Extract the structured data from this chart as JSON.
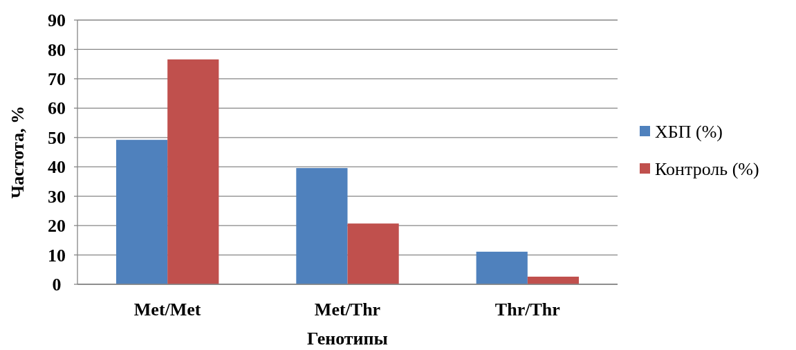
{
  "chart_data": {
    "type": "bar",
    "xlabel": "Генотипы",
    "ylabel": "Частота, %",
    "categories": [
      "Met/Met",
      "Met/Thr",
      "Thr/Thr"
    ],
    "series": [
      {
        "name": "ХБП (%)",
        "color": "#4f81bd",
        "values": [
          49.2,
          39.6,
          11.1
        ]
      },
      {
        "name": "Контроль (%)",
        "color": "#c0504d",
        "values": [
          76.6,
          20.7,
          2.6
        ]
      }
    ],
    "ylim": [
      0,
      90
    ],
    "yticks": [
      0,
      10,
      20,
      30,
      40,
      50,
      60,
      70,
      80,
      90
    ],
    "grid": "y",
    "legend": "right"
  }
}
